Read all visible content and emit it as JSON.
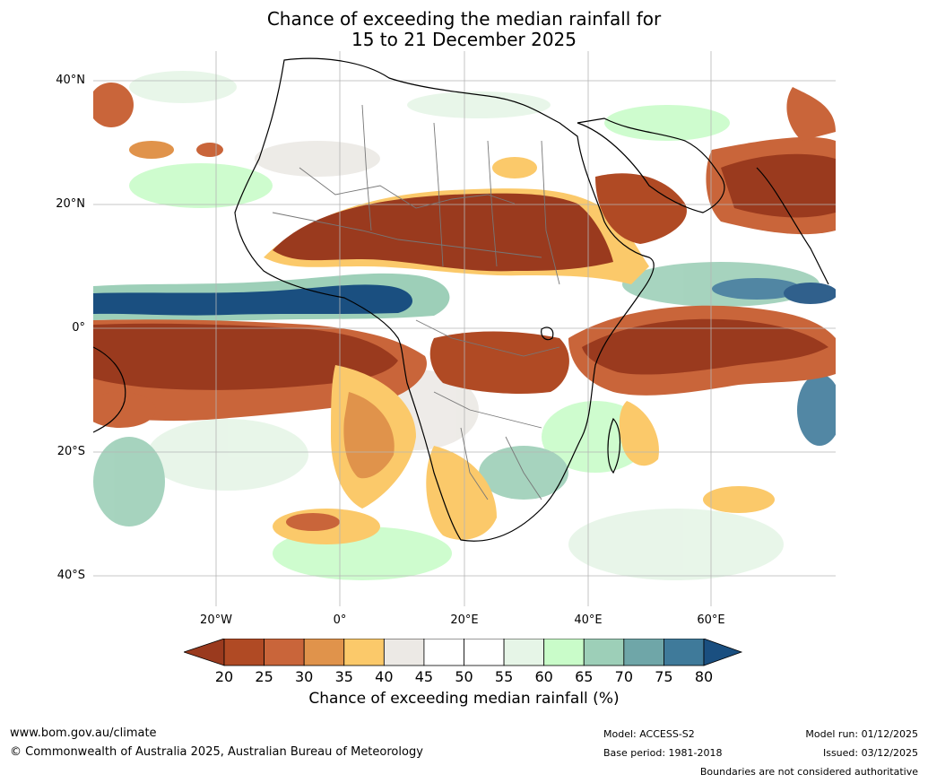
{
  "title_line1": "Chance of exceeding the median rainfall for",
  "title_line2": "15 to 21 December 2025",
  "axes": {
    "lat_labels": [
      "40°N",
      "20°N",
      "0°",
      "20°S",
      "40°S"
    ],
    "lon_labels": [
      "20°W",
      "0°",
      "20°E",
      "40°E",
      "60°E"
    ]
  },
  "colorbar": {
    "ticks": [
      "20",
      "25",
      "30",
      "35",
      "40",
      "45",
      "50",
      "55",
      "60",
      "65",
      "70",
      "75",
      "80"
    ],
    "colors": [
      "#9a3a1e",
      "#b04a24",
      "#c9653a",
      "#e0934b",
      "#fbc96a",
      "#ece9e5",
      "#ffffff",
      "#ffffff",
      "#e6f5e7",
      "#c9fcc9",
      "#9dcfb8",
      "#6fa6a8",
      "#3f7a9a",
      "#1a4f80"
    ],
    "label": "Chance of exceeding median rainfall (%)"
  },
  "footer": {
    "url": "www.bom.gov.au/climate",
    "copyright": "© Commonwealth of Australia 2025, Australian Bureau of Meteorology",
    "model": "Model: ACCESS-S2",
    "base_period": "Base period: 1981-2018",
    "model_run": "Model run: 01/12/2025",
    "issued": "Issued: 03/12/2025",
    "disclaimer": "Boundaries are not considered authoritative"
  }
}
